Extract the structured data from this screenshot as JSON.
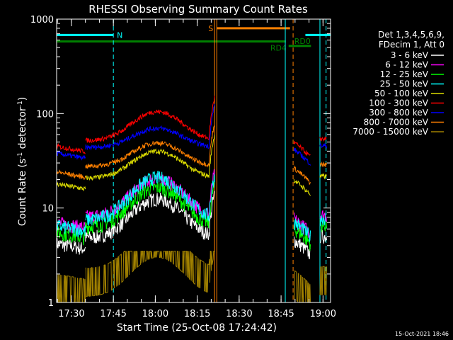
{
  "chart_data": {
    "type": "line",
    "title": "RHESSI Observing Summary Count Rates",
    "xlabel": "Start Time (25-Oct-08 17:24:42)",
    "ylabel_main": "Count Rate (s",
    "ylabel_sup1": "-1",
    "ylabel_mid": " detector",
    "ylabel_sup2": "-1",
    "ylabel_end": ")",
    "y_scale": "log",
    "ylim": [
      1,
      1000
    ],
    "x_unit": "minutes since 17:24:42",
    "xlim": [
      0,
      98
    ],
    "x_ticks": [
      {
        "label": "17:30",
        "t": 5.3
      },
      {
        "label": "17:45",
        "t": 20.3
      },
      {
        "label": "18:00",
        "t": 35.3
      },
      {
        "label": "18:15",
        "t": 50.3
      },
      {
        "label": "18:30",
        "t": 65.3
      },
      {
        "label": "18:45",
        "t": 80.3
      },
      {
        "label": "19:00",
        "t": 95.3
      }
    ],
    "y_ticks": [
      {
        "label": "1",
        "v": 1
      },
      {
        "label": "10",
        "v": 10
      },
      {
        "label": "100",
        "v": 100
      },
      {
        "label": "1000",
        "v": 1000
      }
    ],
    "legend_header": [
      "Det 1,3,4,5,6,9,",
      "FDecim 1, Att 0"
    ],
    "legend_placement": "right",
    "series": [
      {
        "name": "3 - 6 keV",
        "color": "#ffffff",
        "base": 4.2,
        "peak": 12.5
      },
      {
        "name": "6 - 12 keV",
        "color": "#ff00ff",
        "base": 7.0,
        "peak": 20.5
      },
      {
        "name": "12 - 25 keV",
        "color": "#00ff00",
        "base": 5.5,
        "peak": 16.5
      },
      {
        "name": "25 - 50 keV",
        "color": "#00ffff",
        "base": 6.5,
        "peak": 21.0
      },
      {
        "name": "50 - 100 keV",
        "color": "#dcdc00",
        "base": 18.0,
        "peak": 40.0
      },
      {
        "name": "100 - 300 keV",
        "color": "#ff0000",
        "base": 45.0,
        "peak": 105.0
      },
      {
        "name": "300 - 800 keV",
        "color": "#0000ff",
        "base": 38.0,
        "peak": 70.0
      },
      {
        "name": "800 - 7000 keV",
        "color": "#ff8000",
        "base": 24.0,
        "peak": 49.0
      },
      {
        "name": "7000 - 15000 keV",
        "color": "#a08000",
        "base": 1.0,
        "peak": 3.0
      }
    ],
    "flags": [
      {
        "label": "N",
        "color": "#00ffff",
        "y": 680,
        "t_start": 0,
        "t_end": 20.3
      },
      {
        "label": "N",
        "color": "#00ffff",
        "y": 680,
        "t_start": 89,
        "t_end": 98
      },
      {
        "label": "S",
        "color": "#ff8000",
        "y": 800,
        "t_start": 57.3,
        "t_end": 83.5
      },
      {
        "label": "RD4",
        "color": "#008000",
        "y": 580,
        "t_start": 0,
        "t_end": 82.0
      },
      {
        "label": "RD0",
        "color": "#008000",
        "y": 520,
        "t_start": 83.0,
        "t_end": 91.0
      }
    ],
    "vlines": [
      {
        "t": 20.3,
        "color": "#00ffff",
        "style": "dashed"
      },
      {
        "t": 56.5,
        "color": "#ff8000",
        "style": "solid"
      },
      {
        "t": 57.3,
        "color": "#ff8000",
        "style": "solid"
      },
      {
        "t": 81.8,
        "color": "#00ffff",
        "style": "solid"
      },
      {
        "t": 84.6,
        "color": "#ff8000",
        "style": "dashed"
      },
      {
        "t": 94.2,
        "color": "#00ffff",
        "style": "solid"
      },
      {
        "t": 96.4,
        "color": "#00ffff",
        "style": "dashed"
      }
    ]
  },
  "footer": {
    "timestamp": "15-Oct-2021 18:46"
  }
}
